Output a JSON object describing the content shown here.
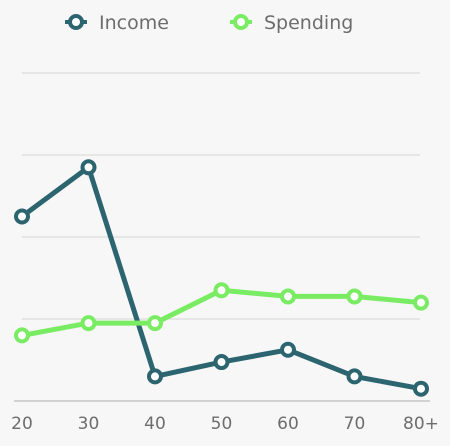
{
  "chart_data": {
    "type": "line",
    "categories": [
      "20",
      "30",
      "40",
      "50",
      "60",
      "70",
      "80+"
    ],
    "series": [
      {
        "name": "Income",
        "color": "#2c6470",
        "values": [
          45,
          57,
          6,
          9.5,
          12.5,
          6,
          3
        ]
      },
      {
        "name": "Spending",
        "color": "#79ec63",
        "values": [
          16,
          19,
          19,
          27,
          25.5,
          25.5,
          24
        ]
      }
    ],
    "ylim": [
      0,
      80
    ],
    "y_gridlines": [
      20,
      40,
      60,
      80
    ],
    "grid": true,
    "legend_position": "top",
    "title": "",
    "xlabel": "",
    "ylabel": ""
  }
}
